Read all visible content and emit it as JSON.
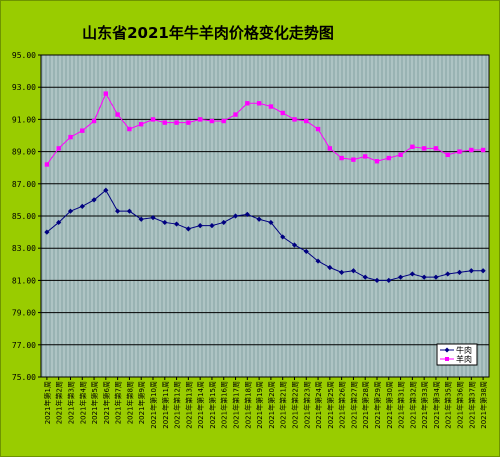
{
  "chart_data": {
    "type": "line",
    "title": "山东省2021年牛羊肉价格变化走势图",
    "xlabel": "",
    "ylabel": "",
    "ylim": [
      75,
      95
    ],
    "y_ticks": [
      "75.00",
      "77.00",
      "79.00",
      "81.00",
      "83.00",
      "85.00",
      "87.00",
      "89.00",
      "91.00",
      "93.00",
      "95.00"
    ],
    "grid": true,
    "legend_position": "lower-right",
    "colors": {
      "background": "#99cc00",
      "plot_background": "#99b3b3",
      "grid": "#000000",
      "beef": "#000080",
      "mutton": "#ff00ff"
    },
    "categories": [
      "2021年第1周",
      "2021年第2周",
      "2021年第3周",
      "2021年第4周",
      "2021年第5周",
      "2021年第6周",
      "2021年第7周",
      "2021年第8周",
      "2021年第9周",
      "2021年第10周",
      "2021年第11周",
      "2021年第12周",
      "2021年第13周",
      "2021年第14周",
      "2021年第15周",
      "2021年第16周",
      "2021年第17周",
      "2021年第18周",
      "2021年第19周",
      "2021年第20周",
      "2021年第21周",
      "2021年第22周",
      "2021年第23周",
      "2021年第24周",
      "2021年第25周",
      "2021年第26周",
      "2021年第27周",
      "2021年第28周",
      "2021年第29周",
      "2021年第30周",
      "2021年第31周",
      "2021年第32周",
      "2021年第33周",
      "2021年第34周",
      "2021年第35周",
      "2021年第36周",
      "2021年第37周",
      "2021年第38周"
    ],
    "series": [
      {
        "name": "牛肉",
        "marker": "diamond",
        "values": [
          84.0,
          84.6,
          85.3,
          85.6,
          86.0,
          86.6,
          85.3,
          85.3,
          84.8,
          84.9,
          84.6,
          84.5,
          84.2,
          84.4,
          84.4,
          84.6,
          85.0,
          85.1,
          84.8,
          84.6,
          83.7,
          83.2,
          82.8,
          82.2,
          81.8,
          81.5,
          81.6,
          81.2,
          81.0,
          81.0,
          81.2,
          81.4,
          81.2,
          81.2,
          81.4,
          81.5,
          81.6,
          81.6
        ]
      },
      {
        "name": "羊肉",
        "marker": "square",
        "values": [
          88.2,
          89.2,
          89.9,
          90.3,
          90.9,
          92.6,
          91.3,
          90.4,
          90.7,
          91.0,
          90.8,
          90.8,
          90.8,
          91.0,
          90.9,
          90.9,
          91.3,
          92.0,
          92.0,
          91.8,
          91.4,
          91.0,
          90.9,
          90.4,
          89.2,
          88.6,
          88.5,
          88.7,
          88.4,
          88.6,
          88.8,
          89.3,
          89.2,
          89.2,
          88.8,
          89.0,
          89.1,
          89.1
        ]
      }
    ]
  }
}
